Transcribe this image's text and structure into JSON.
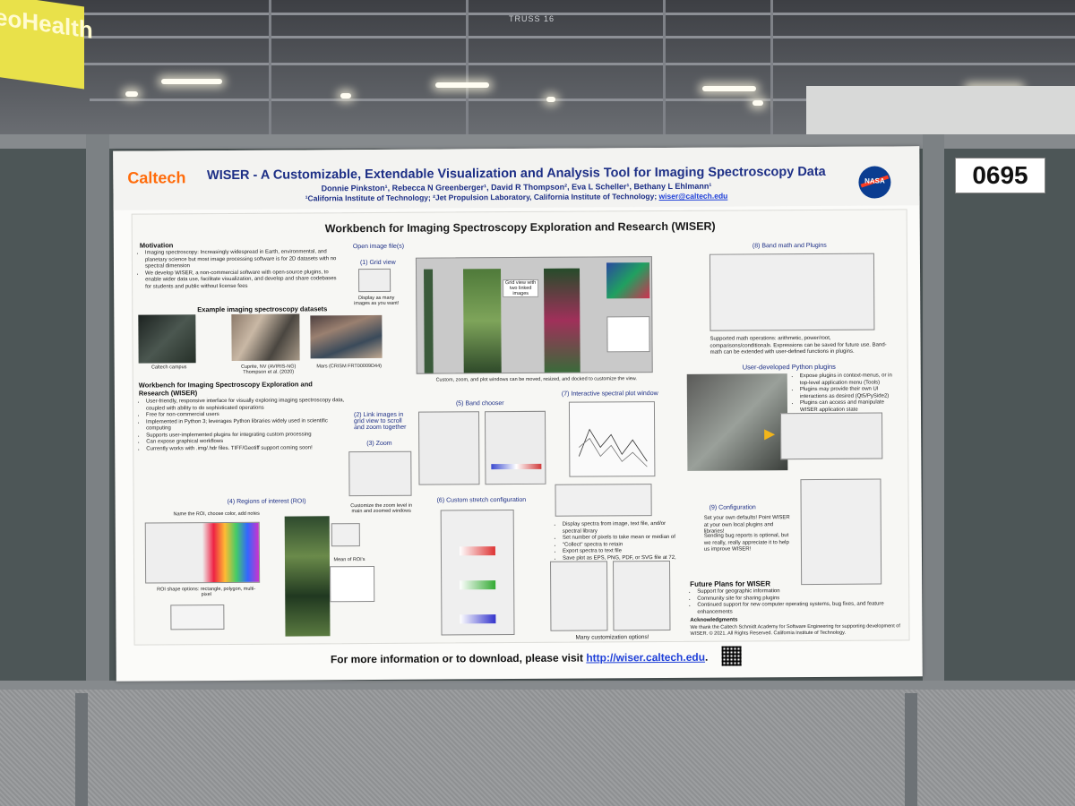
{
  "scene": {
    "banner_text": "eoHealth",
    "truss_label": "TRUSS 16",
    "board_number": "0695"
  },
  "poster": {
    "logo_left": "Caltech",
    "logo_right": "NASA",
    "title": "WISER - A Customizable, Extendable Visualization and Analysis Tool for Imaging Spectroscopy Data",
    "authors": "Donnie Pinkston¹, Rebecca N Greenberger¹, David R Thompson², Eva L Scheller¹, Bethany L Ehlmann¹",
    "affiliations": "¹California Institute of Technology; ²Jet Propulsion Laboratory, California Institute of Technology;",
    "email": "wiser@caltech.edu",
    "main_heading": "Workbench for Imaging Spectroscopy Exploration and Research (WISER)",
    "motivation": {
      "heading": "Motivation",
      "bullets": [
        "Imaging spectroscopy: Increasingly widespread in Earth, environmental, and planetary science but most image processing software is for 2D datasets with no spectral dimension",
        "We develop WISER, a non-commercial software with open-source plugins, to enable wider data use, facilitate visualization, and develop and share codebases for students and public without license fees"
      ]
    },
    "examples": {
      "heading": "Example imaging spectroscopy datasets",
      "captions": [
        "Caltech campus",
        "Cuprite, NV (AVIRIS-NG) Thompson et al. (2020)",
        "Mars (CRISM FRT00009D44)"
      ]
    },
    "workbench": {
      "heading": "Workbench for Imaging Spectroscopy Exploration and Research (WISER)",
      "bullets": [
        "User-friendly, responsive interface for visually exploring imaging spectroscopy data, coupled with ability to do sophisticated operations",
        "Free for non-commercial users",
        "Implemented in Python 3; leverages Python libraries widely used in scientific computing",
        "Supports user-implemented plugins for integrating custom processing",
        "Can expose graphical workflows",
        "Currently works with .img/.hdr files. TIFF/Geotiff support coming soon!"
      ]
    },
    "sections": {
      "open_image": "Open image file(s)",
      "grid_view": "(1)  Grid view",
      "grid_caption": "Display as many images as you want!",
      "zoom_label": "(3) Zoom",
      "grid_view_two": "Grid view with two linked images",
      "main_caption": "Custom, zoom, and plot windows can be moved, resized, and docked to customize the view.",
      "link_images": "(2)  Link images in grid view to scroll and zoom together",
      "zoom": "(3)  Zoom",
      "zoom_caption": "Customize the zoom level in main and zoomed windows",
      "band_chooser": "(5) Band chooser",
      "spectral_plot": "(7)  Interactive spectral plot window",
      "spectral_bullets": [
        "Display spectra from image, text file, and/or spectral library",
        "Set number of pixels to take mean or median of",
        "\"Collect\" spectra to retain",
        "Export spectra to text file",
        "Save plot as EPS, PNG, PDF, or SVG file at 72, 100, or 300 DPI"
      ],
      "band_math": "(8) Band math and Plugins",
      "band_math_caption": "Supported math operations: arithmetic, power/root, comparisons/conditionals. Expressions can be saved for future use.  Band-math can be extended with user-defined functions in plugins.",
      "python_plugins": "User-developed Python plugins",
      "plugin_bullets": [
        "Expose plugins in context-menus, or in top-level application menu (Tools)",
        "Plugins may provide their own UI interactions as desired (Qt5/PySide2)",
        "Plugins can access and manipulate WISER application state"
      ],
      "roi": "(4)  Regions of interest (ROI)",
      "roi_caption_top": "Name the ROI, choose color, add notes",
      "roi_caption_bottom": "ROI shape options: rectangle, polygon, multi-pixel",
      "roi_mean": "Mean of ROI's",
      "custom_stretch": "(6)  Custom stretch configuration",
      "customization": "Many customization options!",
      "configuration": "(9)  Configuration",
      "config_text": "Set your own defaults!  Point WISER at your own local plugins and libraries!",
      "bug_text": "Sending bug reports is optional, but we really, really appreciate it to help us improve WISER!"
    },
    "future": {
      "heading": "Future Plans for WISER",
      "bullets": [
        "Support for geographic information",
        "Community site for sharing plugins",
        "Continued support for new computer operating systems, bug fixes, and feature enhancements"
      ]
    },
    "ack_heading": "Acknowledgments",
    "ack_text": "We thank the Caltech Schmidt Academy for Software Engineering for supporting development of WISER. © 2021. All Rights Reserved. California Institute of Technology.",
    "footer_text": "For more information or to download, please visit",
    "footer_link": "http://wiser.caltech.edu",
    "footer_end": "."
  }
}
